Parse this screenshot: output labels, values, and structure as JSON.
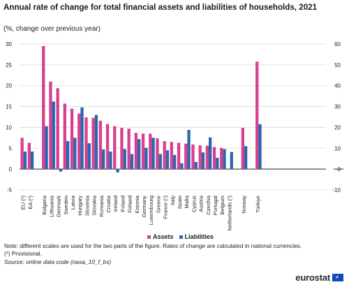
{
  "header": {
    "title": "Annual rate of change for total financial assets and liabilities of households, 2021",
    "subtitle": "(%, change over previous year)"
  },
  "legend": {
    "assets": "Assets",
    "liabilities": "Liabilities"
  },
  "notes": {
    "line1": "Note: different scales are used for the two parts of the figure. Rates of change are calculated in national currencies.",
    "line2": "(¹) Provisional.",
    "source": "Source: online data code (nasa_10_f_bs)"
  },
  "logo": {
    "text": "eurostat"
  },
  "colors": {
    "assets": "#d8408f",
    "liabilities": "#2a67b1",
    "grid": "#d9d9d9",
    "axis": "#222222"
  },
  "chart_data": {
    "type": "bar",
    "title": "Annual rate of change for total financial assets and liabilities of households, 2021",
    "subtitle": "(%, change over previous year)",
    "xlabel": "",
    "ylabel": "",
    "grid": true,
    "legend_position": "bottom",
    "series_names": [
      "Assets",
      "Liabilities"
    ],
    "left_axis": {
      "ylim": [
        -5,
        30
      ],
      "ticks": [
        -5,
        0,
        5,
        10,
        15,
        20,
        25,
        30
      ]
    },
    "right_axis": {
      "ylim": [
        -10,
        60
      ],
      "ticks": [
        -10,
        0,
        10,
        20,
        30,
        40,
        50,
        60
      ]
    },
    "groups": [
      {
        "axis": "left",
        "gap_after": true,
        "categories": [
          "EU (¹)",
          "EA (¹)"
        ],
        "series": [
          {
            "name": "Assets",
            "values": [
              7.5,
              6.3
            ]
          },
          {
            "name": "Liabilities",
            "values": [
              4.2,
              4.2
            ]
          }
        ]
      },
      {
        "axis": "left",
        "gap_after": true,
        "categories": [
          "Bulgaria",
          "Lithuania",
          "Denmark",
          "Sweden",
          "Latvia",
          "Hungary",
          "Slovenia",
          "Slovakia",
          "Romania",
          "Croatia",
          "Ireland",
          "Poland",
          "Finland",
          "Estonia",
          "Germany",
          "Luxembourg",
          "Greece",
          "France (¹)",
          "Italy",
          "Spain",
          "Malta",
          "Cyprus",
          "Austria",
          "Czechia",
          "Portugal",
          "Belgium",
          "Netherlands (¹)"
        ],
        "series": [
          {
            "name": "Assets",
            "values": [
              29.5,
              21.0,
              19.4,
              15.7,
              14.5,
              13.3,
              12.4,
              12.3,
              11.6,
              10.8,
              10.3,
              9.9,
              9.7,
              8.7,
              8.5,
              8.5,
              7.4,
              6.7,
              6.5,
              6.3,
              6.1,
              5.9,
              5.7,
              5.6,
              5.3,
              5.1,
              0
            ]
          },
          {
            "name": "Liabilities",
            "values": [
              10.3,
              16.2,
              -0.6,
              6.7,
              7.5,
              14.8,
              6.2,
              13.0,
              4.7,
              4.2,
              -0.8,
              4.8,
              3.6,
              7.2,
              5.1,
              7.5,
              3.6,
              4.5,
              3.4,
              1.4,
              9.4,
              1.7,
              4.0,
              7.6,
              2.7,
              4.8,
              4.1
            ]
          }
        ]
      },
      {
        "axis": "left",
        "gap_after": true,
        "categories": [
          "Norway"
        ],
        "series": [
          {
            "name": "Assets",
            "values": [
              9.9
            ]
          },
          {
            "name": "Liabilities",
            "values": [
              5.5
            ]
          }
        ]
      },
      {
        "axis": "right",
        "gap_after": false,
        "categories": [
          "Türkiye"
        ],
        "series": [
          {
            "name": "Assets",
            "values": [
              51.5
            ]
          },
          {
            "name": "Liabilities",
            "values": [
              21.5
            ]
          }
        ]
      }
    ]
  }
}
